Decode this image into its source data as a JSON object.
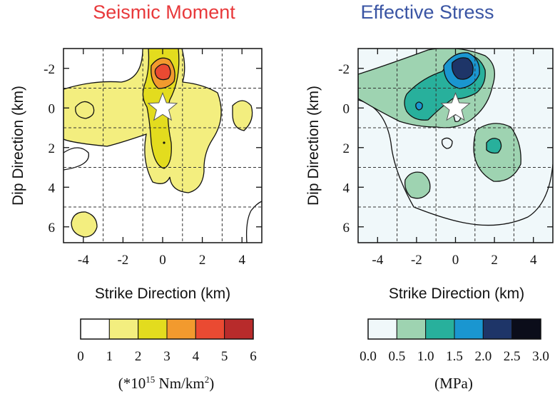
{
  "chart_data": [
    {
      "type": "heatmap",
      "title": "Seismic Moment",
      "title_color": "#e8393b",
      "xlabel": "Strike Direction (km)",
      "ylabel": "Dip Direction (km)",
      "xlim": [
        -5,
        5
      ],
      "ylim": [
        6.8,
        -3
      ],
      "x_ticks": [
        "-4",
        "-2",
        "0",
        "2",
        "4"
      ],
      "y_ticks": [
        "-2",
        "0",
        "2",
        "4",
        "6"
      ],
      "x_tick_values": [
        -4,
        -2,
        0,
        2,
        4
      ],
      "y_tick_values": [
        -2,
        0,
        2,
        4,
        6
      ],
      "grid_x": [
        -3,
        -1,
        1,
        3
      ],
      "grid_y": [
        -1,
        1,
        3,
        5
      ],
      "hypocenter": [
        0,
        0
      ],
      "colorbar": {
        "ticks": [
          "0",
          "1",
          "2",
          "3",
          "4",
          "5",
          "6"
        ],
        "colors": [
          "#ffffff",
          "#f3ee7f",
          "#e3dc1e",
          "#f29a2e",
          "#ea4a32",
          "#b82b2b"
        ],
        "unit_prefix": "(*10",
        "unit_exp": "15",
        "unit_mid": " Nm/km",
        "unit_sq": "2",
        "unit_suffix": ")"
      }
    },
    {
      "type": "heatmap",
      "title": "Effective Stress",
      "title_color": "#3a55a4",
      "xlabel": "Strike Direction (km)",
      "ylabel": "Dip Direction (km)",
      "xlim": [
        -5,
        5
      ],
      "ylim": [
        6.8,
        -3
      ],
      "x_ticks": [
        "-4",
        "-2",
        "0",
        "2",
        "4"
      ],
      "y_ticks": [
        "-2",
        "0",
        "2",
        "4",
        "6"
      ],
      "x_tick_values": [
        -4,
        -2,
        0,
        2,
        4
      ],
      "y_tick_values": [
        -2,
        0,
        2,
        4,
        6
      ],
      "grid_x": [
        -3,
        -1,
        1,
        3
      ],
      "grid_y": [
        -1,
        1,
        3,
        5
      ],
      "hypocenter": [
        0,
        0
      ],
      "colorbar": {
        "ticks": [
          "0.0",
          "0.5",
          "1.0",
          "1.5",
          "2.0",
          "2.5",
          "3.0"
        ],
        "colors": [
          "#f0f8fa",
          "#9ed3b1",
          "#28b09c",
          "#1a96d0",
          "#1e3568",
          "#0b0d1a"
        ],
        "unit": "(MPa)"
      }
    }
  ]
}
